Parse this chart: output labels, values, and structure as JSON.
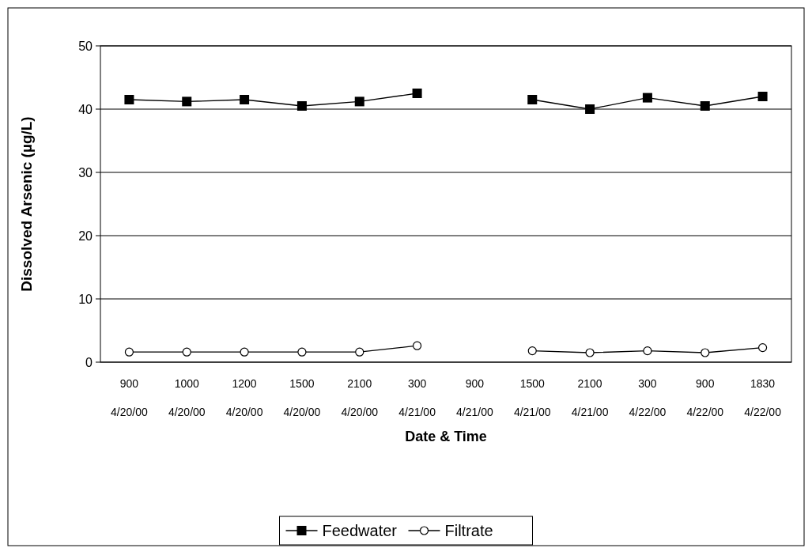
{
  "chart_data": {
    "type": "line",
    "xlabel": "Date & Time",
    "ylabel": "Dissolved Arsenic (µg/L)",
    "categories": [
      "900\n4/20/00",
      "1000\n4/20/00",
      "1200\n4/20/00",
      "1500\n4/20/00",
      "2100\n4/20/00",
      "300\n4/21/00",
      "900\n4/21/00",
      "1500\n4/21/00",
      "2100\n4/21/00",
      "300\n4/22/00",
      "900\n4/22/00",
      "1830\n4/22/00"
    ],
    "series": [
      {
        "name": "Feedwater",
        "color": "#000000",
        "marker": "square",
        "values": [
          41.5,
          41.2,
          41.5,
          40.5,
          41.2,
          42.5,
          null,
          41.5,
          40,
          41.8,
          40.5,
          42
        ]
      },
      {
        "name": "Filtrate",
        "color": "#000000",
        "marker": "circle",
        "values": [
          1.6,
          1.6,
          1.6,
          1.6,
          1.6,
          2.6,
          null,
          1.8,
          1.5,
          1.8,
          1.5,
          2.3
        ]
      }
    ],
    "ylim": [
      0,
      50
    ],
    "yticks": [
      0,
      10,
      20,
      30,
      40,
      50
    ],
    "grid": "y",
    "legend": "bottom"
  }
}
